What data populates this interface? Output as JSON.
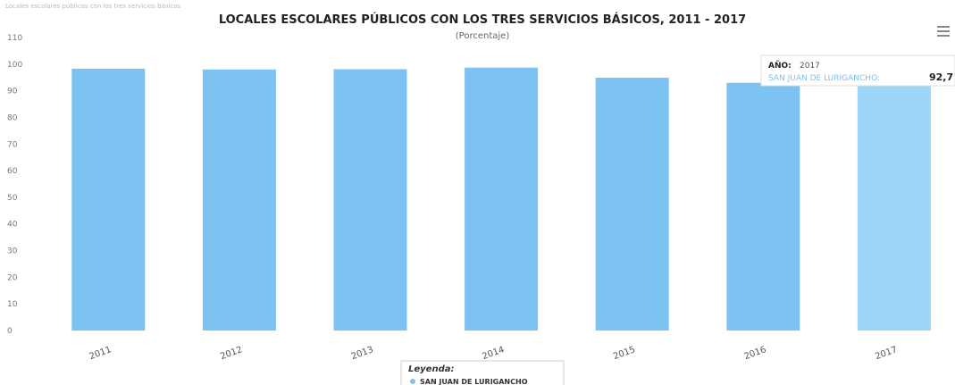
{
  "top_caption": "Locales escolares públicos con los tres servicios básicos",
  "menu_icon": "hamburger-menu-icon",
  "colors": {
    "bar": "#7cc3f2",
    "bar_highlight": "#9ed6f7",
    "text": "#222222",
    "tooltip_series": "#7cc3f2"
  },
  "chart_data": {
    "type": "bar",
    "title": "LOCALES ESCOLARES PÚBLICOS CON LOS TRES SERVICIOS BÁSICOS, 2011 - 2017",
    "subtitle": "(Porcentaje)",
    "categories": [
      "2011",
      "2012",
      "2013",
      "2014",
      "2015",
      "2016",
      "2017"
    ],
    "series": [
      {
        "name": "SAN JUAN DE LURIGANCHO",
        "values": [
          98.3,
          98.0,
          98.1,
          98.7,
          94.9,
          93.0,
          92.7
        ]
      }
    ],
    "yticks": [
      "0",
      "10",
      "20",
      "30",
      "40",
      "50",
      "60",
      "70",
      "80",
      "90",
      "100",
      "110"
    ],
    "ylim": [
      0,
      110
    ],
    "xlabel": "",
    "ylabel": "",
    "grid": false,
    "legend": {
      "title": "Leyenda:",
      "position": "bottom-center"
    },
    "tooltip": {
      "year_label": "AÑO:",
      "year": "2017",
      "series_name": "SAN JUAN DE LURIGANCHO:",
      "value_text": "92,7"
    }
  }
}
